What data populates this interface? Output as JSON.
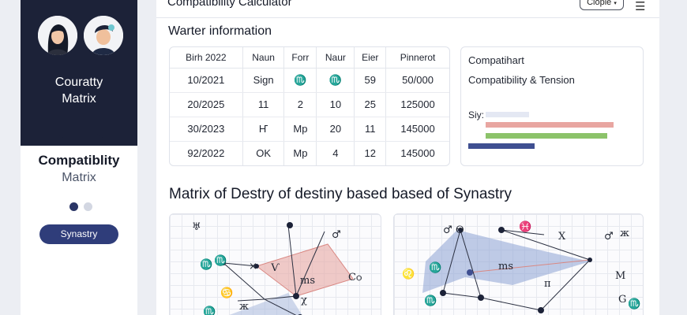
{
  "sidebar": {
    "title_line1": "Couratty",
    "title_line2": "Matrix",
    "heading": "Compatiblity",
    "subheading": "Matrix",
    "button_label": "Synastry",
    "colors": {
      "dark": "#1c2238",
      "accent": "#2f3d7a"
    }
  },
  "header": {
    "title": "Compatibility Calculator",
    "select_value": "Clople",
    "menu_icon": "hamburger-icon"
  },
  "section": {
    "title": "Warter information"
  },
  "table": {
    "headers": [
      "Birh 2022",
      "Naun",
      "Forr",
      "Naur",
      "Eier",
      "Pinnerot"
    ],
    "rows": [
      [
        "10/2021",
        "Sign",
        "♏",
        "♏",
        "59",
        "50/000"
      ],
      [
        "20/2025",
        "11",
        "2",
        "10",
        "25",
        "125000"
      ],
      [
        "30/2023",
        "Ҥ",
        "Mp",
        "20",
        "11",
        "145000"
      ],
      [
        "92/2022",
        "OK",
        "Mp",
        "4",
        "12",
        "145000"
      ]
    ]
  },
  "compat_card": {
    "line1": "Compatihart",
    "line2": "Compatibility & Tension",
    "line3": "Siy:",
    "bars": [
      {
        "color": "#e4e8f3",
        "value": 0.29
      },
      {
        "color": "#e8a6a1",
        "value": 0.85
      },
      {
        "color": "#8cc36a",
        "value": 0.81
      },
      {
        "color": "#3f4f91",
        "value": 0.44
      }
    ]
  },
  "matrix": {
    "title": "Matrix of Destry of destiny based based of Synastry",
    "left_labels": [
      "♅",
      "♂",
      "♏",
      "♏",
      "×",
      "Ѵ",
      "ms",
      "Cѻ",
      "♋",
      "♏",
      "ж",
      "χ"
    ],
    "right_labels": [
      "♂",
      "ϴ",
      "♓",
      "X",
      "♂",
      "ж",
      "♏",
      "ms",
      "♌",
      "M",
      "♏",
      "G",
      "♏"
    ]
  }
}
